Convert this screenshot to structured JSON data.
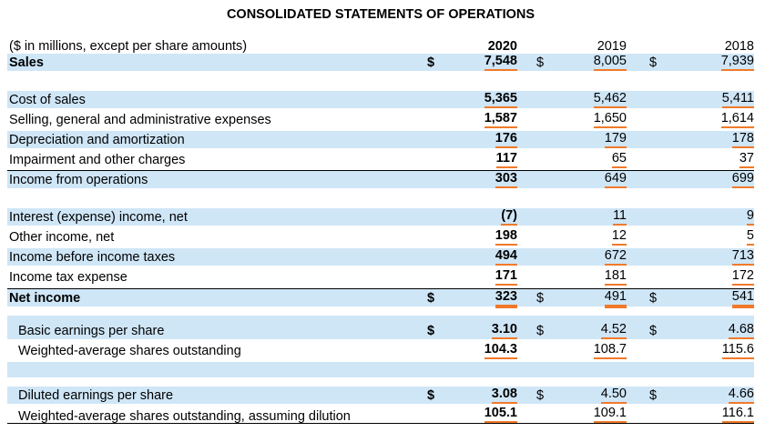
{
  "title": "CONSOLIDATED STATEMENTS OF OPERATIONS",
  "header": {
    "label": "($ in millions, except per share amounts)",
    "y2020": "2020",
    "y2019": "2019",
    "y2018": "2018"
  },
  "rows": {
    "sales": {
      "label": "Sales",
      "d1": "$",
      "v2020": "7,548",
      "d2": "$",
      "v2019": "8,005",
      "d3": "$",
      "v2018": "7,939"
    },
    "cost_of_sales": {
      "label": "Cost of sales",
      "v2020": "5,365",
      "v2019": "5,462",
      "v2018": "5,411"
    },
    "sga": {
      "label": "Selling, general and administrative expenses",
      "v2020": "1,587",
      "v2019": "1,650",
      "v2018": "1,614"
    },
    "da": {
      "label": "Depreciation and amortization",
      "v2020": "176",
      "v2019": "179",
      "v2018": "178"
    },
    "impairment": {
      "label": "Impairment and other charges",
      "v2020": "117",
      "v2019": "65",
      "v2018": "37"
    },
    "income_ops": {
      "label": "Income from operations",
      "v2020": "303",
      "v2019": "649",
      "v2018": "699"
    },
    "interest": {
      "label": "Interest (expense) income, net",
      "v2020": "(7)",
      "v2019": "11",
      "v2018": "9"
    },
    "other_income": {
      "label": "Other income, net",
      "v2020": "198",
      "v2019": "12",
      "v2018": "5"
    },
    "income_before_tax": {
      "label": "Income before income taxes",
      "v2020": "494",
      "v2019": "672",
      "v2018": "713"
    },
    "tax": {
      "label": "Income tax expense",
      "v2020": "171",
      "v2019": "181",
      "v2018": "172"
    },
    "net_income": {
      "label": "Net income",
      "d1": "$",
      "v2020": "323",
      "d2": "$",
      "v2019": "491",
      "d3": "$",
      "v2018": "541"
    },
    "basic_eps": {
      "label": "Basic earnings per share",
      "d1": "$",
      "v2020": "3.10",
      "d2": "$",
      "v2019": "4.52",
      "d3": "$",
      "v2018": "4.68"
    },
    "wavg_shares": {
      "label": "Weighted-average shares outstanding",
      "v2020": "104.3",
      "v2019": "108.7",
      "v2018": "115.6"
    },
    "diluted_eps": {
      "label": "Diluted earnings per share",
      "d1": "$",
      "v2020": "3.08",
      "d2": "$",
      "v2019": "4.50",
      "d3": "$",
      "v2018": "4.66"
    },
    "wavg_diluted": {
      "label": "Weighted-average shares outstanding, assuming dilution",
      "v2020": "105.1",
      "v2019": "109.1",
      "v2018": "116.1"
    }
  },
  "colors": {
    "shade": "#cfe6f7",
    "underline": "#f07a2a"
  }
}
